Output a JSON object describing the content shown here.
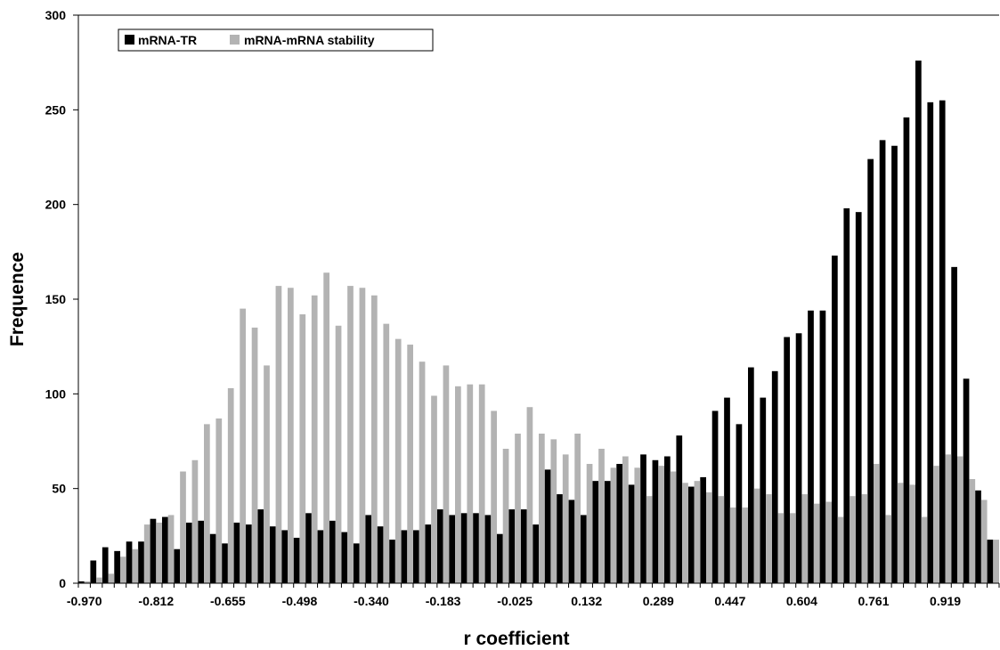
{
  "chart_data": {
    "type": "bar",
    "xlabel": "r coefficient",
    "ylabel": "Frequence",
    "ylim": [
      0,
      300
    ],
    "yticks": [
      0,
      50,
      100,
      150,
      200,
      250,
      300
    ],
    "xtick_labels": [
      "-0.970",
      "-0.812",
      "-0.655",
      "-0.498",
      "-0.340",
      "-0.183",
      "-0.025",
      "0.132",
      "0.289",
      "0.447",
      "0.604",
      "0.761",
      "0.919"
    ],
    "xtick_every": 6,
    "grid": false,
    "legend_position": "top-left",
    "colors": {
      "mRNA-TR": "#000000",
      "mRNA-mRNA stability": "#b3b3b3"
    },
    "series": [
      {
        "name": "mRNA-TR",
        "values": [
          1,
          12,
          19,
          17,
          22,
          22,
          34,
          35,
          18,
          32,
          33,
          26,
          21,
          32,
          31,
          39,
          30,
          28,
          24,
          37,
          28,
          33,
          27,
          21,
          36,
          30,
          23,
          28,
          28,
          31,
          39,
          36,
          37,
          37,
          36,
          26,
          39,
          39,
          31,
          60,
          47,
          44,
          36,
          54,
          54,
          63,
          52,
          68,
          65,
          67,
          78,
          51,
          56,
          91,
          98,
          84,
          114,
          98,
          112,
          130,
          132,
          144,
          144,
          173,
          198,
          196,
          224,
          234,
          231,
          246,
          276,
          254,
          255,
          167,
          108,
          49,
          23
        ]
      },
      {
        "name": "mRNA-mRNA stability",
        "values": [
          1,
          3,
          5,
          14,
          18,
          31,
          32,
          36,
          59,
          65,
          84,
          87,
          103,
          145,
          135,
          115,
          157,
          156,
          142,
          152,
          164,
          136,
          157,
          156,
          152,
          137,
          129,
          126,
          117,
          99,
          115,
          104,
          105,
          105,
          91,
          71,
          79,
          93,
          79,
          76,
          68,
          79,
          63,
          71,
          61,
          67,
          61,
          46,
          62,
          59,
          53,
          54,
          48,
          46,
          40,
          40,
          50,
          47,
          37,
          37,
          47,
          42,
          43,
          35,
          46,
          47,
          63,
          36,
          53,
          52,
          35,
          62,
          68,
          67,
          55,
          44,
          23
        ]
      }
    ]
  }
}
